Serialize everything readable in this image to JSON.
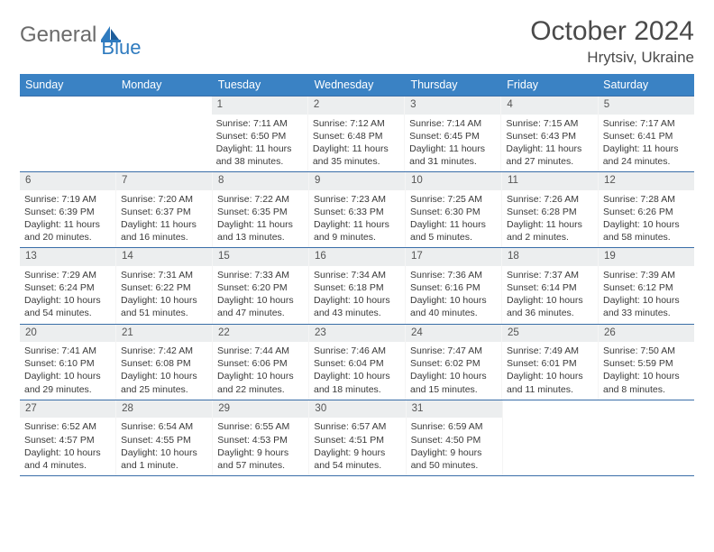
{
  "logo": {
    "text_gray": "General",
    "text_blue": "Blue"
  },
  "title": "October 2024",
  "location": "Hrytsiv, Ukraine",
  "colors": {
    "header_bg": "#3a82c4",
    "header_text": "#ffffff",
    "daynum_bg": "#eceeef",
    "border": "#3a6ea8",
    "logo_gray": "#6b6b6b",
    "logo_blue": "#2f7bbf"
  },
  "days_of_week": [
    "Sunday",
    "Monday",
    "Tuesday",
    "Wednesday",
    "Thursday",
    "Friday",
    "Saturday"
  ],
  "weeks": [
    [
      null,
      null,
      {
        "n": "1",
        "sr": "Sunrise: 7:11 AM",
        "ss": "Sunset: 6:50 PM",
        "d1": "Daylight: 11 hours",
        "d2": "and 38 minutes."
      },
      {
        "n": "2",
        "sr": "Sunrise: 7:12 AM",
        "ss": "Sunset: 6:48 PM",
        "d1": "Daylight: 11 hours",
        "d2": "and 35 minutes."
      },
      {
        "n": "3",
        "sr": "Sunrise: 7:14 AM",
        "ss": "Sunset: 6:45 PM",
        "d1": "Daylight: 11 hours",
        "d2": "and 31 minutes."
      },
      {
        "n": "4",
        "sr": "Sunrise: 7:15 AM",
        "ss": "Sunset: 6:43 PM",
        "d1": "Daylight: 11 hours",
        "d2": "and 27 minutes."
      },
      {
        "n": "5",
        "sr": "Sunrise: 7:17 AM",
        "ss": "Sunset: 6:41 PM",
        "d1": "Daylight: 11 hours",
        "d2": "and 24 minutes."
      }
    ],
    [
      {
        "n": "6",
        "sr": "Sunrise: 7:19 AM",
        "ss": "Sunset: 6:39 PM",
        "d1": "Daylight: 11 hours",
        "d2": "and 20 minutes."
      },
      {
        "n": "7",
        "sr": "Sunrise: 7:20 AM",
        "ss": "Sunset: 6:37 PM",
        "d1": "Daylight: 11 hours",
        "d2": "and 16 minutes."
      },
      {
        "n": "8",
        "sr": "Sunrise: 7:22 AM",
        "ss": "Sunset: 6:35 PM",
        "d1": "Daylight: 11 hours",
        "d2": "and 13 minutes."
      },
      {
        "n": "9",
        "sr": "Sunrise: 7:23 AM",
        "ss": "Sunset: 6:33 PM",
        "d1": "Daylight: 11 hours",
        "d2": "and 9 minutes."
      },
      {
        "n": "10",
        "sr": "Sunrise: 7:25 AM",
        "ss": "Sunset: 6:30 PM",
        "d1": "Daylight: 11 hours",
        "d2": "and 5 minutes."
      },
      {
        "n": "11",
        "sr": "Sunrise: 7:26 AM",
        "ss": "Sunset: 6:28 PM",
        "d1": "Daylight: 11 hours",
        "d2": "and 2 minutes."
      },
      {
        "n": "12",
        "sr": "Sunrise: 7:28 AM",
        "ss": "Sunset: 6:26 PM",
        "d1": "Daylight: 10 hours",
        "d2": "and 58 minutes."
      }
    ],
    [
      {
        "n": "13",
        "sr": "Sunrise: 7:29 AM",
        "ss": "Sunset: 6:24 PM",
        "d1": "Daylight: 10 hours",
        "d2": "and 54 minutes."
      },
      {
        "n": "14",
        "sr": "Sunrise: 7:31 AM",
        "ss": "Sunset: 6:22 PM",
        "d1": "Daylight: 10 hours",
        "d2": "and 51 minutes."
      },
      {
        "n": "15",
        "sr": "Sunrise: 7:33 AM",
        "ss": "Sunset: 6:20 PM",
        "d1": "Daylight: 10 hours",
        "d2": "and 47 minutes."
      },
      {
        "n": "16",
        "sr": "Sunrise: 7:34 AM",
        "ss": "Sunset: 6:18 PM",
        "d1": "Daylight: 10 hours",
        "d2": "and 43 minutes."
      },
      {
        "n": "17",
        "sr": "Sunrise: 7:36 AM",
        "ss": "Sunset: 6:16 PM",
        "d1": "Daylight: 10 hours",
        "d2": "and 40 minutes."
      },
      {
        "n": "18",
        "sr": "Sunrise: 7:37 AM",
        "ss": "Sunset: 6:14 PM",
        "d1": "Daylight: 10 hours",
        "d2": "and 36 minutes."
      },
      {
        "n": "19",
        "sr": "Sunrise: 7:39 AM",
        "ss": "Sunset: 6:12 PM",
        "d1": "Daylight: 10 hours",
        "d2": "and 33 minutes."
      }
    ],
    [
      {
        "n": "20",
        "sr": "Sunrise: 7:41 AM",
        "ss": "Sunset: 6:10 PM",
        "d1": "Daylight: 10 hours",
        "d2": "and 29 minutes."
      },
      {
        "n": "21",
        "sr": "Sunrise: 7:42 AM",
        "ss": "Sunset: 6:08 PM",
        "d1": "Daylight: 10 hours",
        "d2": "and 25 minutes."
      },
      {
        "n": "22",
        "sr": "Sunrise: 7:44 AM",
        "ss": "Sunset: 6:06 PM",
        "d1": "Daylight: 10 hours",
        "d2": "and 22 minutes."
      },
      {
        "n": "23",
        "sr": "Sunrise: 7:46 AM",
        "ss": "Sunset: 6:04 PM",
        "d1": "Daylight: 10 hours",
        "d2": "and 18 minutes."
      },
      {
        "n": "24",
        "sr": "Sunrise: 7:47 AM",
        "ss": "Sunset: 6:02 PM",
        "d1": "Daylight: 10 hours",
        "d2": "and 15 minutes."
      },
      {
        "n": "25",
        "sr": "Sunrise: 7:49 AM",
        "ss": "Sunset: 6:01 PM",
        "d1": "Daylight: 10 hours",
        "d2": "and 11 minutes."
      },
      {
        "n": "26",
        "sr": "Sunrise: 7:50 AM",
        "ss": "Sunset: 5:59 PM",
        "d1": "Daylight: 10 hours",
        "d2": "and 8 minutes."
      }
    ],
    [
      {
        "n": "27",
        "sr": "Sunrise: 6:52 AM",
        "ss": "Sunset: 4:57 PM",
        "d1": "Daylight: 10 hours",
        "d2": "and 4 minutes."
      },
      {
        "n": "28",
        "sr": "Sunrise: 6:54 AM",
        "ss": "Sunset: 4:55 PM",
        "d1": "Daylight: 10 hours",
        "d2": "and 1 minute."
      },
      {
        "n": "29",
        "sr": "Sunrise: 6:55 AM",
        "ss": "Sunset: 4:53 PM",
        "d1": "Daylight: 9 hours",
        "d2": "and 57 minutes."
      },
      {
        "n": "30",
        "sr": "Sunrise: 6:57 AM",
        "ss": "Sunset: 4:51 PM",
        "d1": "Daylight: 9 hours",
        "d2": "and 54 minutes."
      },
      {
        "n": "31",
        "sr": "Sunrise: 6:59 AM",
        "ss": "Sunset: 4:50 PM",
        "d1": "Daylight: 9 hours",
        "d2": "and 50 minutes."
      },
      null,
      null
    ]
  ]
}
